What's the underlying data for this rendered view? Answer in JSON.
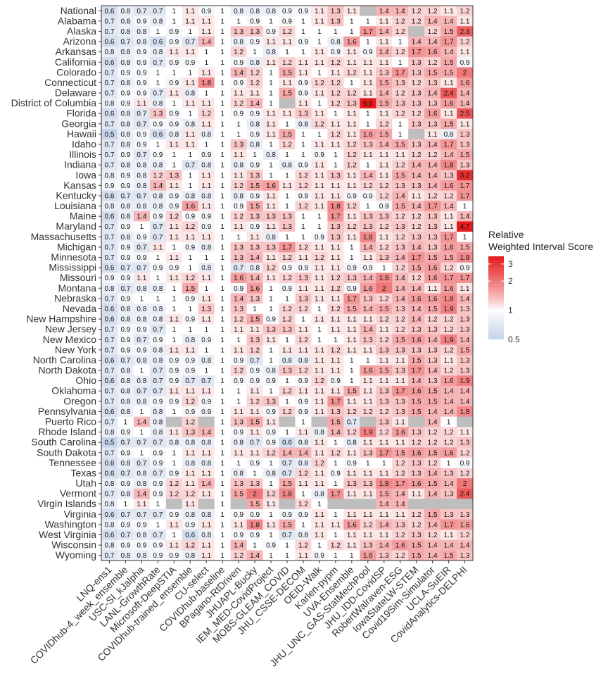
{
  "chart_data": {
    "type": "heatmap",
    "title": "",
    "xlabel": "",
    "ylabel": "",
    "legend": {
      "title_lines": [
        "Relative",
        "Weighted Interval Score"
      ],
      "ticks": [
        0.5,
        1,
        2,
        3
      ],
      "scale": "log",
      "low_color": "#c6d3e8",
      "mid_color": "#ffffff",
      "high_color": "#e41a1c",
      "missing_color": "#bebebe",
      "placement": "right"
    },
    "models": [
      "LNQ-ens1",
      "COVIDhub-4_week_ensemble",
      "USC-SI_kJalpha",
      "LANL-GrowthRate",
      "Microsoft-DeepSTIA",
      "COVIDhub-trained_ensemble",
      "CU-select",
      "COVIDhub-baseline",
      "BPagano-RtDriven",
      "JHUAPL-Bucky",
      "IEM_MED-CovidProject",
      "MOBS-GLEAM_COVID",
      "JHU_CSSE-DECOM",
      "OEID-Walk",
      "Karlen-pypm",
      "UVA-Ensemble",
      "JHU_UNC_GAS-StatMechPool",
      "JHU_IDD-CovidSP",
      "RobertWalraven-ESG",
      "IowaStateLW-STEM",
      "Covid19Sim-Simulator",
      "UCLA-SuEIR",
      "CovidAnalytics-DELPHI"
    ],
    "locations": [
      "National",
      "Alabama",
      "Alaska",
      "Arizona",
      "Arkansas",
      "California",
      "Colorado",
      "Connecticut",
      "Delaware",
      "District of Columbia",
      "Florida",
      "Georgia",
      "Hawaii",
      "Idaho",
      "Illinois",
      "Indiana",
      "Iowa",
      "Kansas",
      "Kentucky",
      "Louisiana",
      "Maine",
      "Maryland",
      "Massachusetts",
      "Michigan",
      "Minnesota",
      "Mississippi",
      "Missouri",
      "Montana",
      "Nebraska",
      "Nevada",
      "New Hampshire",
      "New Jersey",
      "New Mexico",
      "New York",
      "North Carolina",
      "North Dakota",
      "Ohio",
      "Oklahoma",
      "Oregon",
      "Pennsylvania",
      "Puerto Rico",
      "Rhode Island",
      "South Carolina",
      "South Dakota",
      "Tennessee",
      "Texas",
      "Utah",
      "Vermont",
      "Virgin Islands",
      "Virginia",
      "Washington",
      "West Virginia",
      "Wisconsin",
      "Wyoming"
    ],
    "values": [
      [
        0.6,
        0.8,
        0.7,
        0.7,
        1,
        1.1,
        0.9,
        1,
        0.8,
        0.8,
        0.8,
        0.9,
        0.9,
        1.1,
        1.3,
        1.1,
        null,
        1.4,
        1.4,
        1.2,
        1.2,
        1.1,
        1.2
      ],
      [
        0.7,
        0.8,
        0.9,
        0.8,
        1,
        1.1,
        1.1,
        1,
        1,
        0.9,
        1,
        0.9,
        1,
        1.1,
        1.3,
        1,
        1,
        1.1,
        1.2,
        1.2,
        1.4,
        1.4,
        1.1
      ],
      [
        0.7,
        0.8,
        0.8,
        1,
        0.9,
        1,
        1.1,
        1,
        1.3,
        1.3,
        0.9,
        1.2,
        1,
        1,
        1,
        1,
        1.7,
        1.4,
        1.2,
        null,
        1.2,
        1.5,
        2.3
      ],
      [
        0.6,
        0.7,
        0.8,
        0.6,
        0.9,
        0.7,
        1.4,
        1,
        0.8,
        0.9,
        1.1,
        1.1,
        0.9,
        1,
        0.8,
        1.6,
        1,
        1.1,
        1,
        1.4,
        1.4,
        1.7,
        1.2
      ],
      [
        0.8,
        0.8,
        0.9,
        0.8,
        1.1,
        1.1,
        1,
        1,
        1.2,
        1,
        0.8,
        1,
        1,
        1.1,
        0.9,
        1.1,
        0.9,
        1.4,
        1.2,
        1.7,
        1.6,
        1.4,
        1.1
      ],
      [
        0.6,
        0.8,
        0.9,
        0.7,
        0.9,
        0.9,
        1,
        1,
        0.9,
        0.8,
        1.1,
        1.2,
        1.1,
        1.1,
        1.2,
        1.1,
        1.1,
        1.1,
        1,
        1.3,
        1.2,
        1.5,
        0.9
      ],
      [
        0.7,
        0.9,
        0.9,
        1,
        1,
        1,
        1.1,
        1,
        1.4,
        1.2,
        1,
        1.5,
        1.1,
        1,
        1.1,
        1.2,
        1.1,
        1.3,
        1.7,
        1.3,
        1.5,
        1.5,
        2
      ],
      [
        0.7,
        0.8,
        0.9,
        1,
        0.9,
        1.1,
        1.8,
        1,
        0.9,
        1.2,
        1,
        1.1,
        0.9,
        1.2,
        1.2,
        1,
        1.1,
        1.5,
        1.3,
        1.2,
        1.3,
        1.1,
        1.6
      ],
      [
        0.7,
        0.9,
        0.9,
        0.7,
        1.1,
        0.8,
        1,
        1,
        1.1,
        1.1,
        1,
        1.5,
        0.9,
        1.1,
        1.2,
        1.2,
        1.1,
        1.4,
        1.2,
        1.3,
        1.4,
        2.4,
        1.4
      ],
      [
        0.8,
        0.9,
        1.1,
        0.8,
        1,
        1.1,
        1.1,
        1,
        1.2,
        1.4,
        1,
        null,
        1.1,
        1,
        1.2,
        1.3,
        6.6,
        1.5,
        1.3,
        1.3,
        1.3,
        1.6,
        1.4
      ],
      [
        0.6,
        0.8,
        0.7,
        1.3,
        0.9,
        1,
        1.2,
        1,
        0.9,
        0.9,
        1.1,
        1.1,
        1.3,
        1.1,
        1,
        1.1,
        1,
        1.1,
        1.2,
        1.2,
        1.6,
        1.1,
        2.5
      ],
      [
        0.7,
        0.8,
        0.7,
        0.9,
        0.9,
        0.8,
        1.1,
        1,
        1,
        0.8,
        1.1,
        1,
        0.8,
        1.2,
        1.1,
        1.1,
        1,
        1.2,
        1,
        1.3,
        1.3,
        1.5,
        1.1
      ],
      [
        0.5,
        0.8,
        0.9,
        0.6,
        0.8,
        1.1,
        0.8,
        1,
        1,
        0.9,
        1.1,
        1.5,
        1,
        1,
        1.2,
        1.1,
        1.6,
        1.5,
        1,
        null,
        1.1,
        0.8,
        1.3
      ],
      [
        0.7,
        0.8,
        0.9,
        1,
        1.1,
        1.1,
        1,
        1,
        1.3,
        0.8,
        1,
        1.2,
        1,
        1.1,
        1.1,
        1.2,
        1.3,
        1.4,
        1.5,
        1.3,
        1.4,
        1.7,
        1.3
      ],
      [
        0.7,
        0.9,
        0.7,
        0.9,
        1,
        1,
        0.9,
        1,
        1.1,
        1,
        0.8,
        1,
        1,
        0.9,
        1,
        1.2,
        1.1,
        1.1,
        1.1,
        1.2,
        1.2,
        1.4,
        1.5
      ],
      [
        0.7,
        0.8,
        0.8,
        0.8,
        1,
        0.7,
        0.8,
        1,
        0.8,
        0.9,
        1,
        0.8,
        0.9,
        1.1,
        1,
        1.2,
        1,
        1.1,
        1.2,
        1.4,
        1.4,
        1.8,
        1.3
      ],
      [
        0.8,
        0.9,
        0.8,
        1.2,
        1.3,
        1,
        1.1,
        1,
        1.1,
        1.3,
        1,
        1,
        1.2,
        1.1,
        1.3,
        1.1,
        1.4,
        1.1,
        1.5,
        1.4,
        1.4,
        1.3,
        3.2
      ],
      [
        0.9,
        0.9,
        0.8,
        1.4,
        1.1,
        1,
        1.1,
        1,
        1.2,
        1.5,
        1.6,
        1.1,
        1.2,
        1.1,
        1.1,
        1.1,
        1.2,
        1.2,
        1.3,
        1.3,
        1.4,
        1.6,
        1.7
      ],
      [
        0.6,
        0.7,
        0.7,
        0.8,
        0.9,
        0.8,
        0.8,
        1,
        0.8,
        0.9,
        1.1,
        1,
        0.9,
        1.1,
        1.1,
        0.9,
        0.9,
        1.2,
        1.4,
        1.1,
        1.2,
        1.2,
        1.7
      ],
      [
        0.8,
        0.8,
        0.8,
        0.8,
        0.9,
        1.6,
        1.1,
        1,
        0.9,
        1.5,
        1.1,
        1,
        1.2,
        1.1,
        1.8,
        1.2,
        1,
        0.9,
        1.5,
        1.4,
        1.7,
        1.4,
        1
      ],
      [
        0.6,
        0.8,
        1.4,
        0.9,
        1.2,
        0.9,
        0.9,
        1,
        1.2,
        1.3,
        1.3,
        1.3,
        1,
        1,
        1.7,
        1.1,
        1.3,
        1.3,
        1.2,
        1.2,
        1.3,
        1.1,
        1.4
      ],
      [
        0.7,
        0.9,
        1,
        0.7,
        1.1,
        1.2,
        0.9,
        1,
        1.1,
        0.9,
        1.1,
        1.3,
        1,
        1,
        1.3,
        1.2,
        1.3,
        1.2,
        1.3,
        1.2,
        1.3,
        1.1,
        4.7
      ],
      [
        0.7,
        0.8,
        0.9,
        0.7,
        1.1,
        1.1,
        1.1,
        1,
        1,
        1.1,
        0.8,
        1,
        1,
        0.9,
        1.3,
        1.1,
        1.8,
        1.1,
        1.2,
        1.3,
        1.3,
        1.7,
        1
      ],
      [
        0.7,
        0.9,
        0.7,
        1.1,
        1,
        0.9,
        0.8,
        1,
        1.3,
        1.3,
        1.3,
        1.7,
        1.2,
        1.1,
        1.1,
        1,
        1.4,
        1.2,
        1.3,
        1.4,
        1.3,
        1.6,
        1.5
      ],
      [
        0.7,
        0.9,
        0.9,
        1,
        1.1,
        1,
        1,
        1,
        1.3,
        1.4,
        1.1,
        1.2,
        1.1,
        1.2,
        1.1,
        1,
        1.1,
        1.3,
        1.4,
        1.7,
        1.5,
        1.5,
        1.8
      ],
      [
        0.6,
        0.7,
        0.7,
        0.9,
        0.9,
        1,
        0.8,
        1,
        0.7,
        0.8,
        1.2,
        0.9,
        0.9,
        1.1,
        1.1,
        0.9,
        0.9,
        1,
        1.2,
        1.5,
        1.6,
        1.2,
        0.9
      ],
      [
        0.9,
        0.9,
        1.1,
        1,
        1.1,
        1.2,
        1.1,
        1,
        1.6,
        1.4,
        1.1,
        1.2,
        1.3,
        1.1,
        1.2,
        1.3,
        1.4,
        1.8,
        1.4,
        1.2,
        1.6,
        1.7,
        1.7
      ],
      [
        0.8,
        0.7,
        0.8,
        0.8,
        1,
        1.5,
        1,
        1,
        0.9,
        1.6,
        1,
        0.9,
        1.1,
        1.1,
        1.2,
        0.9,
        1.6,
        2,
        1.4,
        1.4,
        1.1,
        1.6,
        1.1
      ],
      [
        0.7,
        0.9,
        1,
        1,
        1,
        0.9,
        1.1,
        1,
        1.4,
        1.3,
        1,
        1,
        1.3,
        1.1,
        1.1,
        1.7,
        1.3,
        1.2,
        1.4,
        1.6,
        1.6,
        1.8,
        1.4
      ],
      [
        0.6,
        0.8,
        0.8,
        0.8,
        1,
        1,
        1.3,
        1,
        1.3,
        1,
        1,
        1.2,
        1.2,
        1,
        1.2,
        1.5,
        1.4,
        1.5,
        1.3,
        1.4,
        1.5,
        1.9,
        1.3
      ],
      [
        0.6,
        0.8,
        0.8,
        0.8,
        1.1,
        0.9,
        1.1,
        1,
        1.2,
        1.5,
        0.9,
        1.2,
        1,
        1.1,
        1.1,
        1.1,
        1.1,
        1.2,
        1.2,
        1.4,
        1.2,
        1.2,
        1.3
      ],
      [
        0.7,
        0.9,
        0.9,
        0.7,
        1,
        1,
        1,
        1,
        1.1,
        1.1,
        1.3,
        1.3,
        1.1,
        1,
        1.1,
        1.1,
        1.4,
        1.1,
        1.2,
        1.3,
        1.3,
        1.2,
        1.3
      ],
      [
        0.7,
        0.9,
        0.7,
        0.9,
        1,
        0.8,
        0.9,
        1,
        1,
        1.3,
        1.1,
        1,
        1.2,
        1,
        1,
        1.1,
        1.3,
        1.2,
        1.5,
        1.6,
        1.4,
        1.9,
        1.4
      ],
      [
        0.7,
        0.9,
        0.9,
        0.8,
        1.1,
        1.1,
        1,
        1,
        1.1,
        1.2,
        1,
        1.1,
        1.1,
        1.1,
        1.2,
        1.1,
        1.1,
        1.3,
        1.3,
        1.3,
        1.3,
        1.2,
        1.5
      ],
      [
        0.6,
        0.7,
        0.8,
        0.8,
        0.9,
        0.9,
        0.8,
        1,
        0.9,
        0.7,
        1,
        0.8,
        0.8,
        1.1,
        1.1,
        1,
        1,
        1.1,
        1.1,
        1.5,
        1.3,
        1.1,
        1.3
      ],
      [
        0.7,
        0.8,
        1,
        0.7,
        0.9,
        0.9,
        1,
        1,
        1.2,
        0.9,
        0.8,
        1.3,
        1.2,
        1.1,
        1.1,
        1,
        1.6,
        1.5,
        1.3,
        1.7,
        1.4,
        1.2,
        1.3
      ],
      [
        0.6,
        0.8,
        0.8,
        0.7,
        0.9,
        0.7,
        0.7,
        1,
        0.9,
        0.9,
        0.9,
        1,
        0.9,
        1.2,
        0.9,
        1,
        1.1,
        1.1,
        1.1,
        1.4,
        1.3,
        1.6,
        1.9
      ],
      [
        0.7,
        0.8,
        0.7,
        0.7,
        1.1,
        1.1,
        1.1,
        1,
        1,
        1.1,
        1,
        1.2,
        1.1,
        1.1,
        1.1,
        1.5,
        1.1,
        1.3,
        1.7,
        1.6,
        1.5,
        1.4,
        1.4
      ],
      [
        0.7,
        0.8,
        0.8,
        0.9,
        0.9,
        1.2,
        0.9,
        1,
        1,
        1.2,
        1.3,
        1,
        0.9,
        1.1,
        1.7,
        1.1,
        1.1,
        1.3,
        1.3,
        1.5,
        1.5,
        1.4,
        1.4
      ],
      [
        0.6,
        0.8,
        1,
        0.8,
        1,
        0.9,
        0.9,
        1,
        1.1,
        1.1,
        0.9,
        1.2,
        0.9,
        1.1,
        1.3,
        1.2,
        1.2,
        1.2,
        1.3,
        1.5,
        1.4,
        1.4,
        1.8
      ],
      [
        0.7,
        1,
        1.4,
        0.8,
        null,
        1.2,
        null,
        1,
        1.3,
        1.5,
        1.1,
        null,
        1,
        null,
        1.5,
        0.7,
        null,
        1.3,
        1.1,
        null,
        1.4,
        1,
        null
      ],
      [
        0.8,
        0.9,
        1,
        0.8,
        1.1,
        1.3,
        1.4,
        1,
        0.9,
        1.1,
        0.9,
        1,
        1.1,
        0.8,
        1.4,
        1.2,
        1.9,
        1.2,
        1.6,
        1.3,
        1.2,
        1.2,
        1.1
      ],
      [
        0.5,
        0.7,
        0.7,
        0.7,
        0.8,
        0.8,
        0.8,
        1,
        0.8,
        0.7,
        0.9,
        0.6,
        0.8,
        1.1,
        1,
        0.8,
        1.1,
        1.1,
        1.1,
        1.2,
        1.2,
        1.2,
        1.3
      ],
      [
        0.7,
        0.9,
        1,
        0.9,
        1,
        1.1,
        1.1,
        1,
        1.1,
        1.1,
        1.2,
        1.4,
        1.4,
        1.1,
        1.2,
        1.1,
        1.3,
        1.7,
        1.5,
        1.6,
        1.5,
        1.6,
        1.2
      ],
      [
        0.6,
        0.8,
        0.7,
        0.9,
        1,
        0.8,
        0.8,
        1,
        1,
        0.9,
        1,
        0.7,
        0.8,
        1.2,
        1,
        0.9,
        1,
        1,
        1.2,
        1.3,
        1.2,
        1,
        0.9
      ],
      [
        0.6,
        0.7,
        0.8,
        0.7,
        0.9,
        1.1,
        1.1,
        1,
        0.8,
        1,
        0.8,
        0.7,
        1.2,
        1.1,
        0.9,
        1.1,
        1.1,
        1.1,
        1.2,
        1.3,
        1.4,
        1.3,
        1.2
      ],
      [
        0.8,
        0.9,
        0.8,
        0.9,
        1.2,
        1.1,
        1.4,
        1,
        1.3,
        1.3,
        1,
        1.5,
        1.1,
        1.1,
        1,
        1.3,
        1.3,
        1.8,
        1.7,
        1.6,
        1.5,
        1.4,
        2
      ],
      [
        0.7,
        0.8,
        1.4,
        0.9,
        1.2,
        1.2,
        1.1,
        1,
        1.5,
        2,
        1.2,
        1.8,
        1,
        0.8,
        1.7,
        1.1,
        1.1,
        1.5,
        1.4,
        1.1,
        1.4,
        1.3,
        2.4
      ],
      [
        0.8,
        1,
        1.1,
        1,
        null,
        1.1,
        null,
        1,
        null,
        1.5,
        1.1,
        null,
        1.2,
        1,
        null,
        null,
        null,
        1.4,
        1.4,
        null,
        null,
        null,
        null
      ],
      [
        0.6,
        0.7,
        0.7,
        0.7,
        0.9,
        0.8,
        0.8,
        1,
        0.9,
        0.9,
        1,
        0.9,
        0.9,
        1.1,
        1,
        1.1,
        1.1,
        1.1,
        1.1,
        1.2,
        1.5,
        1.3,
        1.3
      ],
      [
        0.8,
        0.9,
        0.9,
        1,
        1.1,
        0.9,
        1.1,
        1,
        1.1,
        1.8,
        1.1,
        1.5,
        1,
        1.1,
        1.1,
        1.6,
        1.2,
        1.4,
        1.3,
        1.2,
        1.4,
        1.7,
        1.6
      ],
      [
        0.6,
        0.7,
        0.8,
        0.7,
        1,
        0.6,
        0.8,
        1,
        0.9,
        0.9,
        1,
        0.7,
        0.8,
        1.1,
        1,
        1.1,
        1.1,
        1.1,
        1.2,
        1.3,
        1.2,
        1.1,
        1.2
      ],
      [
        0.8,
        0.9,
        0.9,
        0.9,
        1.1,
        1.2,
        1.1,
        1,
        1.4,
        1,
        0.9,
        1,
        1.2,
        1,
        1.2,
        1.1,
        1.3,
        1.4,
        1.6,
        1.5,
        1.4,
        1.4,
        1.4
      ],
      [
        0.7,
        0.8,
        0.8,
        0.9,
        0.9,
        0.8,
        1.1,
        1,
        1.2,
        1.4,
        1,
        1,
        1.1,
        0.9,
        1,
        1,
        1.6,
        1.3,
        1.2,
        1.5,
        1.4,
        1.5,
        1.3
      ]
    ]
  }
}
